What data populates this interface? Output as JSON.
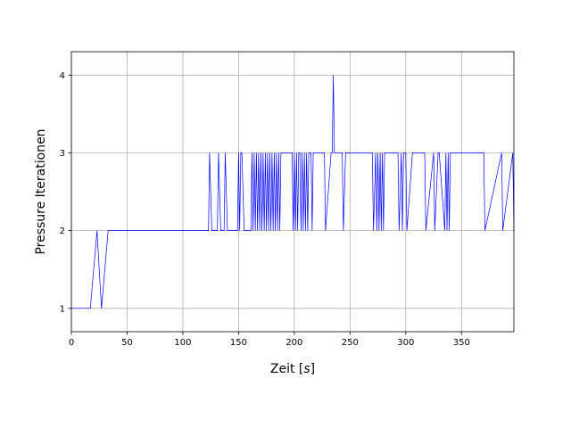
{
  "chart_data": {
    "type": "line",
    "title": "",
    "xlabel": "Zeit [s]",
    "xlabel_parts": {
      "prefix": "Zeit [",
      "italic": "s",
      "suffix": "]"
    },
    "ylabel": "Pressure Iterationen",
    "xlim": [
      0,
      397
    ],
    "ylim": [
      0.7,
      4.3
    ],
    "xticks": [
      0,
      50,
      100,
      150,
      200,
      250,
      300,
      350
    ],
    "yticks": [
      1,
      2,
      3,
      4
    ],
    "xtick_labels": [
      "0",
      "50",
      "100",
      "150",
      "200",
      "250",
      "300",
      "350"
    ],
    "ytick_labels": [
      "1",
      "2",
      "3",
      "4"
    ],
    "grid": true,
    "legend": "none",
    "line_color": "#0000ff",
    "series": [
      {
        "x": [
          0,
          17,
          23,
          27,
          33,
          123,
          124,
          126,
          131,
          132,
          134,
          137,
          138,
          140,
          149,
          150,
          151,
          152,
          153,
          155,
          161,
          162,
          163,
          164,
          165,
          166,
          167,
          168,
          169,
          170,
          171,
          172,
          173,
          174,
          175,
          176,
          177,
          178,
          179,
          180,
          181,
          182,
          183,
          184,
          185,
          186,
          187,
          188,
          189,
          198,
          199,
          200,
          201,
          202,
          203,
          204,
          205,
          206,
          207,
          208,
          209,
          210,
          211,
          212,
          213,
          214,
          215,
          216,
          217,
          218,
          221,
          227,
          228,
          233,
          234,
          235,
          236,
          237,
          243,
          244,
          246,
          250,
          251,
          270,
          271,
          273,
          274,
          275,
          276,
          277,
          278,
          279,
          280,
          281,
          293,
          294,
          296,
          297,
          298,
          300,
          301,
          306,
          307,
          317,
          318,
          325,
          326,
          329,
          330,
          335,
          336,
          337,
          338,
          339,
          340,
          370,
          371,
          386,
          387,
          396,
          397
        ],
        "y": [
          1,
          1,
          2,
          1,
          2,
          2,
          3,
          2,
          2,
          3,
          2,
          2,
          3,
          2,
          2,
          3,
          2,
          3,
          3,
          2,
          2,
          3,
          2,
          3,
          2,
          3,
          2,
          3,
          2,
          3,
          2,
          3,
          2,
          3,
          2,
          3,
          2,
          3,
          2,
          3,
          2,
          3,
          2,
          3,
          2,
          3,
          2,
          3,
          3,
          3,
          2,
          3,
          2,
          3,
          2,
          3,
          3,
          2,
          3,
          2,
          3,
          2,
          3,
          2,
          3,
          3,
          3,
          2,
          3,
          3,
          3,
          3,
          2,
          3,
          3,
          4,
          3,
          3,
          3,
          2,
          3,
          3,
          3,
          3,
          2,
          3,
          2,
          3,
          2,
          3,
          2,
          3,
          2,
          3,
          3,
          2,
          3,
          2,
          3,
          3,
          2,
          3,
          3,
          3,
          2,
          3,
          2,
          3,
          3,
          2,
          3,
          2,
          3,
          2,
          3,
          3,
          2,
          3,
          2,
          3,
          2
        ]
      }
    ]
  }
}
